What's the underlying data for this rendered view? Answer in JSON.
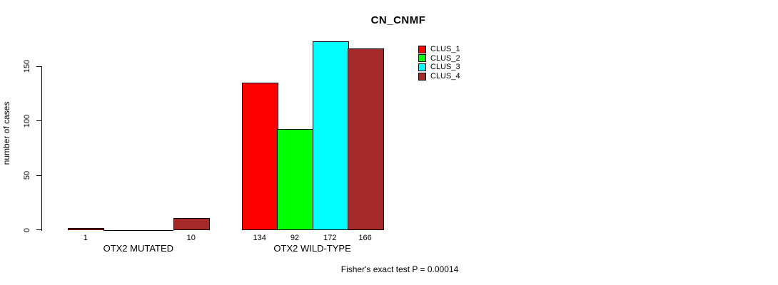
{
  "chart_data": {
    "type": "bar",
    "title": "CN_CNMF",
    "ylabel": "number of cases",
    "xlabel": "",
    "categories": [
      "OTX2 MUTATED",
      "OTX2 WILD-TYPE"
    ],
    "series": [
      {
        "name": "CLUS_1",
        "color": "#FF0000",
        "values": [
          1,
          134
        ]
      },
      {
        "name": "CLUS_2",
        "color": "#00FF00",
        "values": [
          0,
          92
        ]
      },
      {
        "name": "CLUS_3",
        "color": "#00FFFF",
        "values": [
          0,
          172
        ]
      },
      {
        "name": "CLUS_4",
        "color": "#A52A2A",
        "values": [
          10,
          166
        ]
      }
    ],
    "bar_value_labels": [
      [
        "1",
        "",
        "",
        "10"
      ],
      [
        "134",
        "92",
        "172",
        "166"
      ]
    ],
    "yticks": [
      0,
      50,
      100,
      150
    ],
    "ylim": [
      0,
      172
    ],
    "grid": false,
    "legend_position": "topright",
    "annotation": "Fisher's exact test P = 0.00014",
    "colors": {
      "axis": "#000000",
      "bar_border": "#000000",
      "background": "#FFFFFF"
    }
  }
}
